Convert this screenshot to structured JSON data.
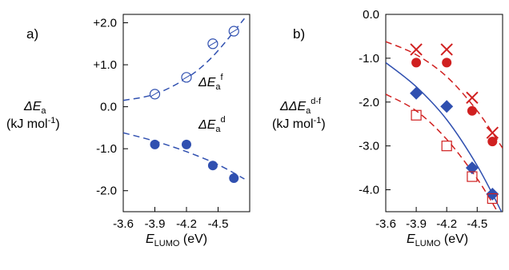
{
  "chart_data": [
    {
      "type": "scatter",
      "panel_label": "a)",
      "ylabel_line1": "ΔE",
      "ylabel_line1_sub": "a",
      "ylabel_line2": "(kJ mol",
      "ylabel_line2_sup": "-1",
      "ylabel_line2_end": ")",
      "xlabel_main": "E",
      "xlabel_sub": "LUMO",
      "xlabel_unit": " (eV)",
      "xlim": [
        -3.6,
        -4.8
      ],
      "ylim": [
        -2.5,
        2.2
      ],
      "x_ticks": [
        -3.6,
        -3.9,
        -4.2,
        -4.5
      ],
      "x_tick_labels": [
        "-3.6",
        "-3.9",
        "-4.2",
        "-4.5"
      ],
      "y_ticks": [
        2.0,
        1.0,
        0.0,
        -1.0,
        -2.0
      ],
      "y_tick_labels": [
        "+2.0",
        "+1.0",
        "0.0",
        "-1.0",
        "-2.0"
      ],
      "series": [
        {
          "name_main": "ΔE",
          "name_sub": "a",
          "name_sup": "f",
          "marker": "open-circle",
          "color": "#3050b0",
          "x": [
            -3.9,
            -4.2,
            -4.45,
            -4.65
          ],
          "y": [
            0.3,
            0.7,
            1.5,
            1.8
          ],
          "fit_x": [
            -3.6,
            -3.9,
            -4.2,
            -4.45,
            -4.75
          ],
          "fit_y": [
            0.15,
            0.3,
            0.68,
            1.2,
            2.1
          ]
        },
        {
          "name_main": "ΔE",
          "name_sub": "a",
          "name_sup": "d",
          "marker": "filled-circle",
          "color": "#3050b0",
          "x": [
            -3.9,
            -4.2,
            -4.45,
            -4.65
          ],
          "y": [
            -0.9,
            -0.9,
            -1.4,
            -1.7
          ],
          "fit_x": [
            -3.6,
            -3.9,
            -4.2,
            -4.5,
            -4.75
          ],
          "fit_y": [
            -0.62,
            -0.82,
            -1.07,
            -1.38,
            -1.72
          ]
        }
      ]
    },
    {
      "type": "scatter",
      "panel_label": "b)",
      "ylabel_line1": "ΔΔE",
      "ylabel_line1_sub": "a",
      "ylabel_line1_sup": "d-f",
      "ylabel_line2": "(kJ mol",
      "ylabel_line2_sup": "-1",
      "ylabel_line2_end": ")",
      "xlabel_main": "E",
      "xlabel_sub": "LUMO",
      "xlabel_unit": " (eV)",
      "xlim": [
        -3.6,
        -4.75
      ],
      "ylim": [
        -4.5,
        0.0
      ],
      "x_ticks": [
        -3.6,
        -3.9,
        -4.2,
        -4.5
      ],
      "x_tick_labels": [
        "-3.6",
        "-3.9",
        "-4.2",
        "-4.5"
      ],
      "y_ticks": [
        0.0,
        -1.0,
        -2.0,
        -3.0,
        -4.0
      ],
      "y_tick_labels": [
        "0.0",
        "-1.0",
        "-2.0",
        "-3.0",
        "-4.0"
      ],
      "series": [
        {
          "marker": "cross",
          "color": "#d02020",
          "x": [
            -3.9,
            -4.2,
            -4.45,
            -4.65
          ],
          "y": [
            -0.8,
            -0.8,
            -1.9,
            -2.7
          ],
          "fit_x": [
            -3.6,
            -3.9,
            -4.2,
            -4.5,
            -4.75
          ],
          "fit_y": [
            -0.62,
            -0.92,
            -1.42,
            -2.2,
            -3.05
          ],
          "fit_style": "dashed"
        },
        {
          "marker": "filled-circle",
          "color": "#d02020",
          "x": [
            -3.9,
            -4.2,
            -4.45,
            -4.65
          ],
          "y": [
            -1.1,
            -1.1,
            -2.2,
            -2.9
          ]
        },
        {
          "marker": "filled-diamond",
          "color": "#3050b0",
          "x": [
            -3.9,
            -4.2,
            -4.45,
            -4.65
          ],
          "y": [
            -1.8,
            -2.1,
            -3.5,
            -4.1
          ],
          "fit_x": [
            -3.6,
            -3.9,
            -4.2,
            -4.5,
            -4.75
          ],
          "fit_y": [
            -1.1,
            -1.65,
            -2.4,
            -3.45,
            -4.55
          ],
          "fit_style": "solid"
        },
        {
          "marker": "open-square",
          "color": "#d02020",
          "x": [
            -3.9,
            -4.2,
            -4.45,
            -4.65
          ],
          "y": [
            -2.3,
            -3.0,
            -3.7,
            -4.2
          ],
          "fit_x": [
            -3.6,
            -3.9,
            -4.2,
            -4.5,
            -4.7
          ],
          "fit_y": [
            -1.82,
            -2.2,
            -2.85,
            -3.75,
            -4.5
          ],
          "fit_style": "dashed"
        }
      ]
    }
  ]
}
